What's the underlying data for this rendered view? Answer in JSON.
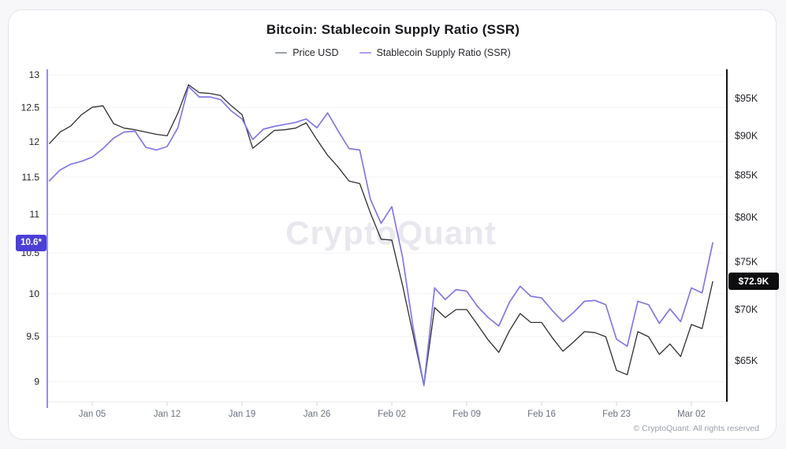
{
  "page": {
    "title": "Bitcoin: Stablecoin Supply Ratio (SSR)",
    "copyright": "© CryptoQuant. All rights reserved",
    "watermark": "CryptoQuant"
  },
  "legend": {
    "items": [
      {
        "label": "Price USD",
        "dash_color": "#9aa0a6"
      },
      {
        "label": "Stablecoin Supply Ratio (SSR)",
        "dash_color": "#a7a0f0"
      }
    ]
  },
  "badges": {
    "ssr_last_value": "10.6*",
    "ssr_badge_color": "#4b3fd6",
    "price_last_value": "$72.9K",
    "price_badge_color": "#0d0d0f"
  },
  "colors": {
    "price_line": "#2f2f31",
    "ssr_line": "#8178e8",
    "left_axis_line": "#7c71ee",
    "right_axis_line": "#141416",
    "gridline": "#f3f2f6",
    "tick_label_dark": "#1f2126",
    "x_label_gray": "#6b7280",
    "watermark": "#e9e8ef",
    "plot_border": "#e8e8ec"
  },
  "chart_data": {
    "type": "line",
    "title": "Bitcoin: Stablecoin Supply Ratio (SSR)",
    "x": [
      "Jan 01",
      "Jan 02",
      "Jan 03",
      "Jan 04",
      "Jan 05",
      "Jan 06",
      "Jan 07",
      "Jan 08",
      "Jan 09",
      "Jan 10",
      "Jan 11",
      "Jan 12",
      "Jan 13",
      "Jan 14",
      "Jan 15",
      "Jan 16",
      "Jan 17",
      "Jan 18",
      "Jan 19",
      "Jan 20",
      "Jan 21",
      "Jan 22",
      "Jan 23",
      "Jan 24",
      "Jan 25",
      "Jan 26",
      "Jan 27",
      "Jan 28",
      "Jan 29",
      "Jan 30",
      "Jan 31",
      "Feb 01",
      "Feb 02",
      "Feb 03",
      "Feb 04",
      "Feb 05",
      "Feb 06",
      "Feb 07",
      "Feb 08",
      "Feb 09",
      "Feb 10",
      "Feb 11",
      "Feb 12",
      "Feb 13",
      "Feb 14",
      "Feb 15",
      "Feb 16",
      "Feb 17",
      "Feb 18",
      "Feb 19",
      "Feb 20",
      "Feb 21",
      "Feb 22",
      "Feb 23",
      "Feb 24",
      "Feb 25",
      "Feb 26",
      "Feb 27",
      "Feb 28",
      "Mar 01",
      "Mar 02",
      "Mar 03",
      "Mar 04"
    ],
    "x_ticks": [
      {
        "index": 4,
        "label": "Jan 05"
      },
      {
        "index": 11,
        "label": "Jan 12"
      },
      {
        "index": 18,
        "label": "Jan 19"
      },
      {
        "index": 25,
        "label": "Jan 26"
      },
      {
        "index": 32,
        "label": "Feb 02"
      },
      {
        "index": 39,
        "label": "Feb 09"
      },
      {
        "index": 46,
        "label": "Feb 16"
      },
      {
        "index": 53,
        "label": "Feb 23"
      },
      {
        "index": 60,
        "label": "Mar 02"
      }
    ],
    "series": [
      {
        "name": "Price USD",
        "axis": "right",
        "unit": "K USD",
        "values": [
          89.0,
          90.5,
          91.3,
          92.8,
          93.8,
          94.0,
          91.6,
          91.0,
          90.8,
          90.5,
          90.2,
          90.0,
          93.0,
          96.9,
          95.8,
          95.7,
          95.4,
          94.0,
          92.8,
          88.4,
          89.5,
          90.7,
          90.8,
          91.0,
          91.7,
          89.5,
          87.5,
          86.0,
          84.3,
          84.0,
          80.5,
          77.5,
          77.4,
          72.5,
          67.5,
          62.7,
          70.2,
          69.2,
          70.0,
          70.0,
          68.5,
          67.0,
          65.8,
          67.9,
          69.6,
          68.7,
          68.7,
          67.2,
          65.9,
          66.8,
          67.8,
          67.7,
          67.3,
          64.1,
          63.7,
          67.8,
          67.3,
          65.6,
          66.6,
          65.4,
          68.5,
          68.1,
          72.9
        ]
      },
      {
        "name": "Stablecoin Supply Ratio (SSR)",
        "axis": "left",
        "unit": "ratio",
        "values": [
          11.45,
          11.6,
          11.68,
          11.72,
          11.78,
          11.9,
          12.05,
          12.14,
          12.15,
          11.92,
          11.88,
          11.93,
          12.2,
          12.82,
          12.66,
          12.66,
          12.62,
          12.45,
          12.33,
          12.03,
          12.18,
          12.22,
          12.25,
          12.28,
          12.33,
          12.2,
          12.42,
          12.15,
          11.9,
          11.88,
          11.2,
          10.88,
          11.1,
          10.45,
          9.6,
          8.96,
          10.07,
          9.93,
          10.05,
          10.03,
          9.85,
          9.72,
          9.62,
          9.9,
          10.09,
          9.97,
          9.95,
          9.8,
          9.67,
          9.78,
          9.91,
          9.92,
          9.87,
          9.47,
          9.39,
          9.91,
          9.87,
          9.65,
          9.82,
          9.67,
          10.07,
          10.01,
          10.63
        ]
      }
    ],
    "left_axis": {
      "scale": "log",
      "ticks": [
        13,
        12.5,
        12,
        11.5,
        11,
        10.5,
        10,
        9.5,
        9
      ],
      "range": [
        9,
        13
      ],
      "last_value": 10.63,
      "last_value_label": "10.6*"
    },
    "right_axis": {
      "scale": "log",
      "ticks": [
        95,
        90,
        85,
        80,
        75,
        70,
        65
      ],
      "tick_labels": [
        "$95K",
        "$90K",
        "$85K",
        "$80K",
        "$75K",
        "$70K",
        "$65K"
      ],
      "range": [
        65,
        95
      ],
      "last_value": 72.9,
      "last_value_label": "$72.9K"
    },
    "grid": "horizontal",
    "legend_position": "top"
  }
}
